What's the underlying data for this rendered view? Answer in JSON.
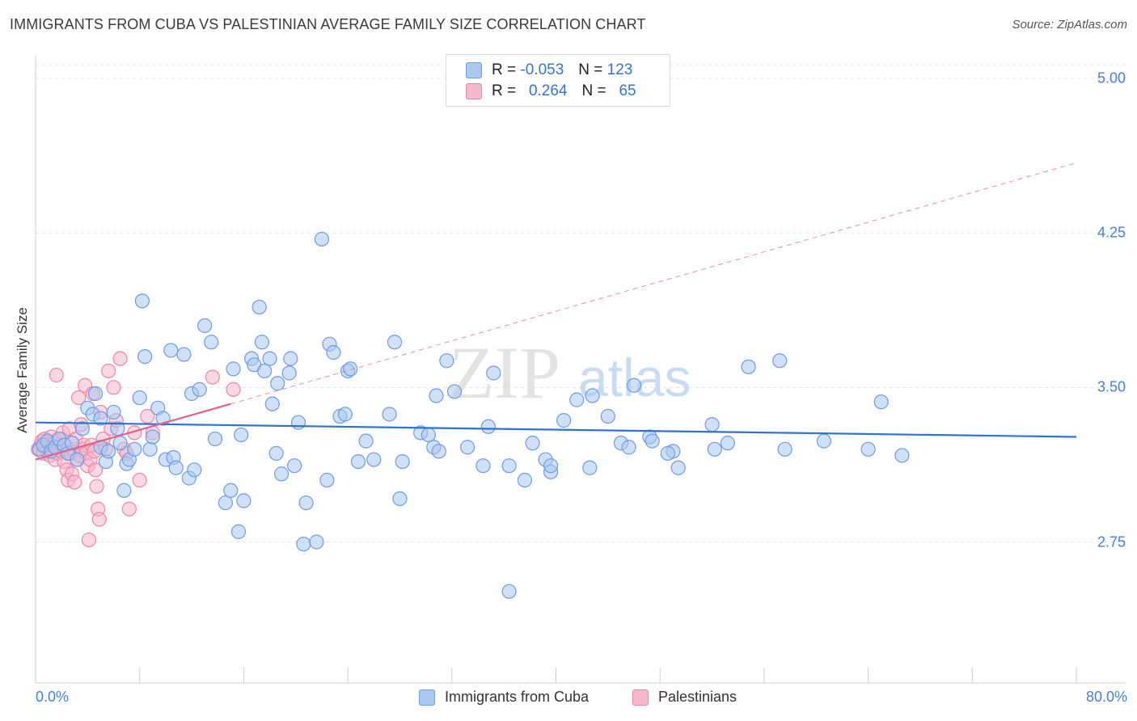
{
  "title": "IMMIGRANTS FROM CUBA VS PALESTINIAN AVERAGE FAMILY SIZE CORRELATION CHART",
  "source": "Source: ZipAtlas.com",
  "watermark": {
    "zip": "ZIP",
    "atlas": "atlas"
  },
  "legend": {
    "rows": [
      {
        "r_label": "R =",
        "r_value": "-0.053",
        "n_label": "N =",
        "n_value": "123"
      },
      {
        "r_label": "R =",
        "r_value": "0.264",
        "n_label": "N =",
        "n_value": "65"
      }
    ]
  },
  "bottom_legend": {
    "series1": "Immigrants from Cuba",
    "series2": "Palestinians"
  },
  "colors": {
    "blue_fill": "#aac8f0",
    "blue_stroke": "#6f9be0",
    "blue_line": "#2f72d0",
    "pink_fill": "#f6b8cc",
    "pink_stroke": "#ec86a8",
    "pink_line": "#e0608e",
    "grid": "#e4e4e4",
    "axis_text": "#4a7fd4"
  },
  "chart_data": {
    "type": "scatter",
    "title": "IMMIGRANTS FROM CUBA VS PALESTINIAN AVERAGE FAMILY SIZE CORRELATION CHART",
    "xlabel": "",
    "ylabel": "Average Family Size",
    "xlim": [
      0,
      80
    ],
    "ylim": [
      2.0,
      5.12
    ],
    "y_ticks": [
      2.75,
      3.5,
      4.25,
      5.0
    ],
    "y_tick_labels": [
      "2.75",
      "3.50",
      "4.25",
      "5.00"
    ],
    "x_tick_labels": [
      "0.0%",
      "80.0%"
    ],
    "x_tick_values": [
      0,
      8,
      16,
      24,
      32,
      40,
      48,
      56,
      64,
      72,
      80
    ],
    "series": [
      {
        "name": "Immigrants from Cuba",
        "R": -0.053,
        "N": 123,
        "trend": {
          "x0": 0,
          "y0": 3.33,
          "x1": 80,
          "y1": 3.26
        },
        "points": [
          [
            0.3,
            3.2
          ],
          [
            0.6,
            3.22
          ],
          [
            0.9,
            3.24
          ],
          [
            1.2,
            3.19
          ],
          [
            1.5,
            3.21
          ],
          [
            1.8,
            3.25
          ],
          [
            2.2,
            3.22
          ],
          [
            2.5,
            3.18
          ],
          [
            2.8,
            3.23
          ],
          [
            3.2,
            3.15
          ],
          [
            3.6,
            3.3
          ],
          [
            4.0,
            3.4
          ],
          [
            4.4,
            3.37
          ],
          [
            4.6,
            3.47
          ],
          [
            5.0,
            3.35
          ],
          [
            5.0,
            3.21
          ],
          [
            5.4,
            3.14
          ],
          [
            5.6,
            3.19
          ],
          [
            6.0,
            3.38
          ],
          [
            6.3,
            3.3
          ],
          [
            6.5,
            3.23
          ],
          [
            6.8,
            3.0
          ],
          [
            7.0,
            3.13
          ],
          [
            7.2,
            3.15
          ],
          [
            7.6,
            3.2
          ],
          [
            8.0,
            3.45
          ],
          [
            8.2,
            3.92
          ],
          [
            8.4,
            3.65
          ],
          [
            8.8,
            3.2
          ],
          [
            9.0,
            3.26
          ],
          [
            9.4,
            3.4
          ],
          [
            9.8,
            3.35
          ],
          [
            10.0,
            3.15
          ],
          [
            10.4,
            3.68
          ],
          [
            10.6,
            3.16
          ],
          [
            10.8,
            3.11
          ],
          [
            11.4,
            3.66
          ],
          [
            11.8,
            3.06
          ],
          [
            12.0,
            3.47
          ],
          [
            12.2,
            3.1
          ],
          [
            12.6,
            3.49
          ],
          [
            13.0,
            3.8
          ],
          [
            13.5,
            3.72
          ],
          [
            13.8,
            3.25
          ],
          [
            14.6,
            2.94
          ],
          [
            15.0,
            3.0
          ],
          [
            15.2,
            3.59
          ],
          [
            15.6,
            2.8
          ],
          [
            15.8,
            3.27
          ],
          [
            16.0,
            2.95
          ],
          [
            16.6,
            3.64
          ],
          [
            16.8,
            3.61
          ],
          [
            17.2,
            3.89
          ],
          [
            17.4,
            3.72
          ],
          [
            17.6,
            3.58
          ],
          [
            18.0,
            3.64
          ],
          [
            18.2,
            3.42
          ],
          [
            18.5,
            3.18
          ],
          [
            18.6,
            3.52
          ],
          [
            18.9,
            3.08
          ],
          [
            19.5,
            3.57
          ],
          [
            19.6,
            3.64
          ],
          [
            19.9,
            3.12
          ],
          [
            20.2,
            3.33
          ],
          [
            20.6,
            2.74
          ],
          [
            20.8,
            2.94
          ],
          [
            21.6,
            2.75
          ],
          [
            22.0,
            4.22
          ],
          [
            22.4,
            3.05
          ],
          [
            22.6,
            3.71
          ],
          [
            22.9,
            3.67
          ],
          [
            23.4,
            3.36
          ],
          [
            23.8,
            3.37
          ],
          [
            24.0,
            3.58
          ],
          [
            24.2,
            3.59
          ],
          [
            24.8,
            3.14
          ],
          [
            25.4,
            3.24
          ],
          [
            26.0,
            3.15
          ],
          [
            27.2,
            3.37
          ],
          [
            27.6,
            3.72
          ],
          [
            28.0,
            2.96
          ],
          [
            28.2,
            3.14
          ],
          [
            29.6,
            3.28
          ],
          [
            30.2,
            3.27
          ],
          [
            30.8,
            3.46
          ],
          [
            30.6,
            3.21
          ],
          [
            31.0,
            3.19
          ],
          [
            31.6,
            3.63
          ],
          [
            32.2,
            3.48
          ],
          [
            33.2,
            3.21
          ],
          [
            34.4,
            3.12
          ],
          [
            34.8,
            3.31
          ],
          [
            35.2,
            3.57
          ],
          [
            36.4,
            3.12
          ],
          [
            37.6,
            3.05
          ],
          [
            38.2,
            3.23
          ],
          [
            39.2,
            3.15
          ],
          [
            39.6,
            3.09
          ],
          [
            39.6,
            3.12
          ],
          [
            40.6,
            3.34
          ],
          [
            41.6,
            3.44
          ],
          [
            42.6,
            3.11
          ],
          [
            42.8,
            3.46
          ],
          [
            44.0,
            3.36
          ],
          [
            45.0,
            3.23
          ],
          [
            45.6,
            3.21
          ],
          [
            46.0,
            3.51
          ],
          [
            47.2,
            3.26
          ],
          [
            47.4,
            3.24
          ],
          [
            49.0,
            3.19
          ],
          [
            49.4,
            3.11
          ],
          [
            52.0,
            3.32
          ],
          [
            52.2,
            3.2
          ],
          [
            53.2,
            3.23
          ],
          [
            54.8,
            3.6
          ],
          [
            57.2,
            3.63
          ],
          [
            57.6,
            3.2
          ],
          [
            60.6,
            3.24
          ],
          [
            64.0,
            3.2
          ],
          [
            65.0,
            3.43
          ],
          [
            66.6,
            3.17
          ],
          [
            36.4,
            2.51
          ],
          [
            48.6,
            3.18
          ]
        ]
      },
      {
        "name": "Palestinians",
        "R": 0.264,
        "N": 65,
        "trend": {
          "x0": 0,
          "y0": 3.15,
          "x1": 15,
          "y1": 3.42,
          "dashed_to_x": 80,
          "dashed_to_y": 4.59
        },
        "points": [
          [
            0.2,
            3.2
          ],
          [
            0.4,
            3.22
          ],
          [
            0.5,
            3.24
          ],
          [
            0.6,
            3.18
          ],
          [
            0.7,
            3.25
          ],
          [
            0.8,
            3.21
          ],
          [
            0.9,
            3.19
          ],
          [
            1.0,
            3.23
          ],
          [
            1.1,
            3.17
          ],
          [
            1.2,
            3.26
          ],
          [
            1.3,
            3.2
          ],
          [
            1.4,
            3.22
          ],
          [
            1.5,
            3.15
          ],
          [
            1.6,
            3.24
          ],
          [
            1.7,
            3.18
          ],
          [
            1.8,
            3.21
          ],
          [
            1.9,
            3.25
          ],
          [
            2.0,
            3.19
          ],
          [
            2.1,
            3.28
          ],
          [
            2.2,
            3.14
          ],
          [
            2.3,
            3.22
          ],
          [
            2.4,
            3.1
          ],
          [
            2.5,
            3.05
          ],
          [
            2.6,
            3.3
          ],
          [
            2.7,
            3.18
          ],
          [
            2.8,
            3.08
          ],
          [
            2.9,
            3.2
          ],
          [
            3.0,
            3.04
          ],
          [
            3.1,
            3.25
          ],
          [
            3.2,
            3.15
          ],
          [
            3.3,
            3.45
          ],
          [
            3.4,
            3.17
          ],
          [
            3.5,
            3.32
          ],
          [
            3.6,
            3.2
          ],
          [
            3.7,
            3.22
          ],
          [
            3.8,
            3.51
          ],
          [
            3.9,
            3.18
          ],
          [
            4.0,
            3.12
          ],
          [
            4.1,
            2.76
          ],
          [
            4.2,
            3.15
          ],
          [
            4.3,
            3.22
          ],
          [
            4.4,
            3.47
          ],
          [
            4.5,
            3.19
          ],
          [
            4.6,
            3.1
          ],
          [
            4.7,
            3.02
          ],
          [
            4.8,
            2.91
          ],
          [
            4.9,
            2.86
          ],
          [
            5.0,
            3.38
          ],
          [
            5.2,
            3.25
          ],
          [
            5.4,
            3.2
          ],
          [
            5.6,
            3.58
          ],
          [
            5.8,
            3.3
          ],
          [
            6.0,
            3.5
          ],
          [
            6.2,
            3.34
          ],
          [
            6.5,
            3.64
          ],
          [
            6.8,
            3.2
          ],
          [
            7.0,
            3.18
          ],
          [
            7.2,
            2.91
          ],
          [
            7.6,
            3.28
          ],
          [
            8.0,
            3.05
          ],
          [
            8.6,
            3.36
          ],
          [
            9.0,
            3.28
          ],
          [
            13.6,
            3.55
          ],
          [
            15.2,
            3.49
          ],
          [
            1.6,
            3.56
          ]
        ]
      }
    ]
  }
}
